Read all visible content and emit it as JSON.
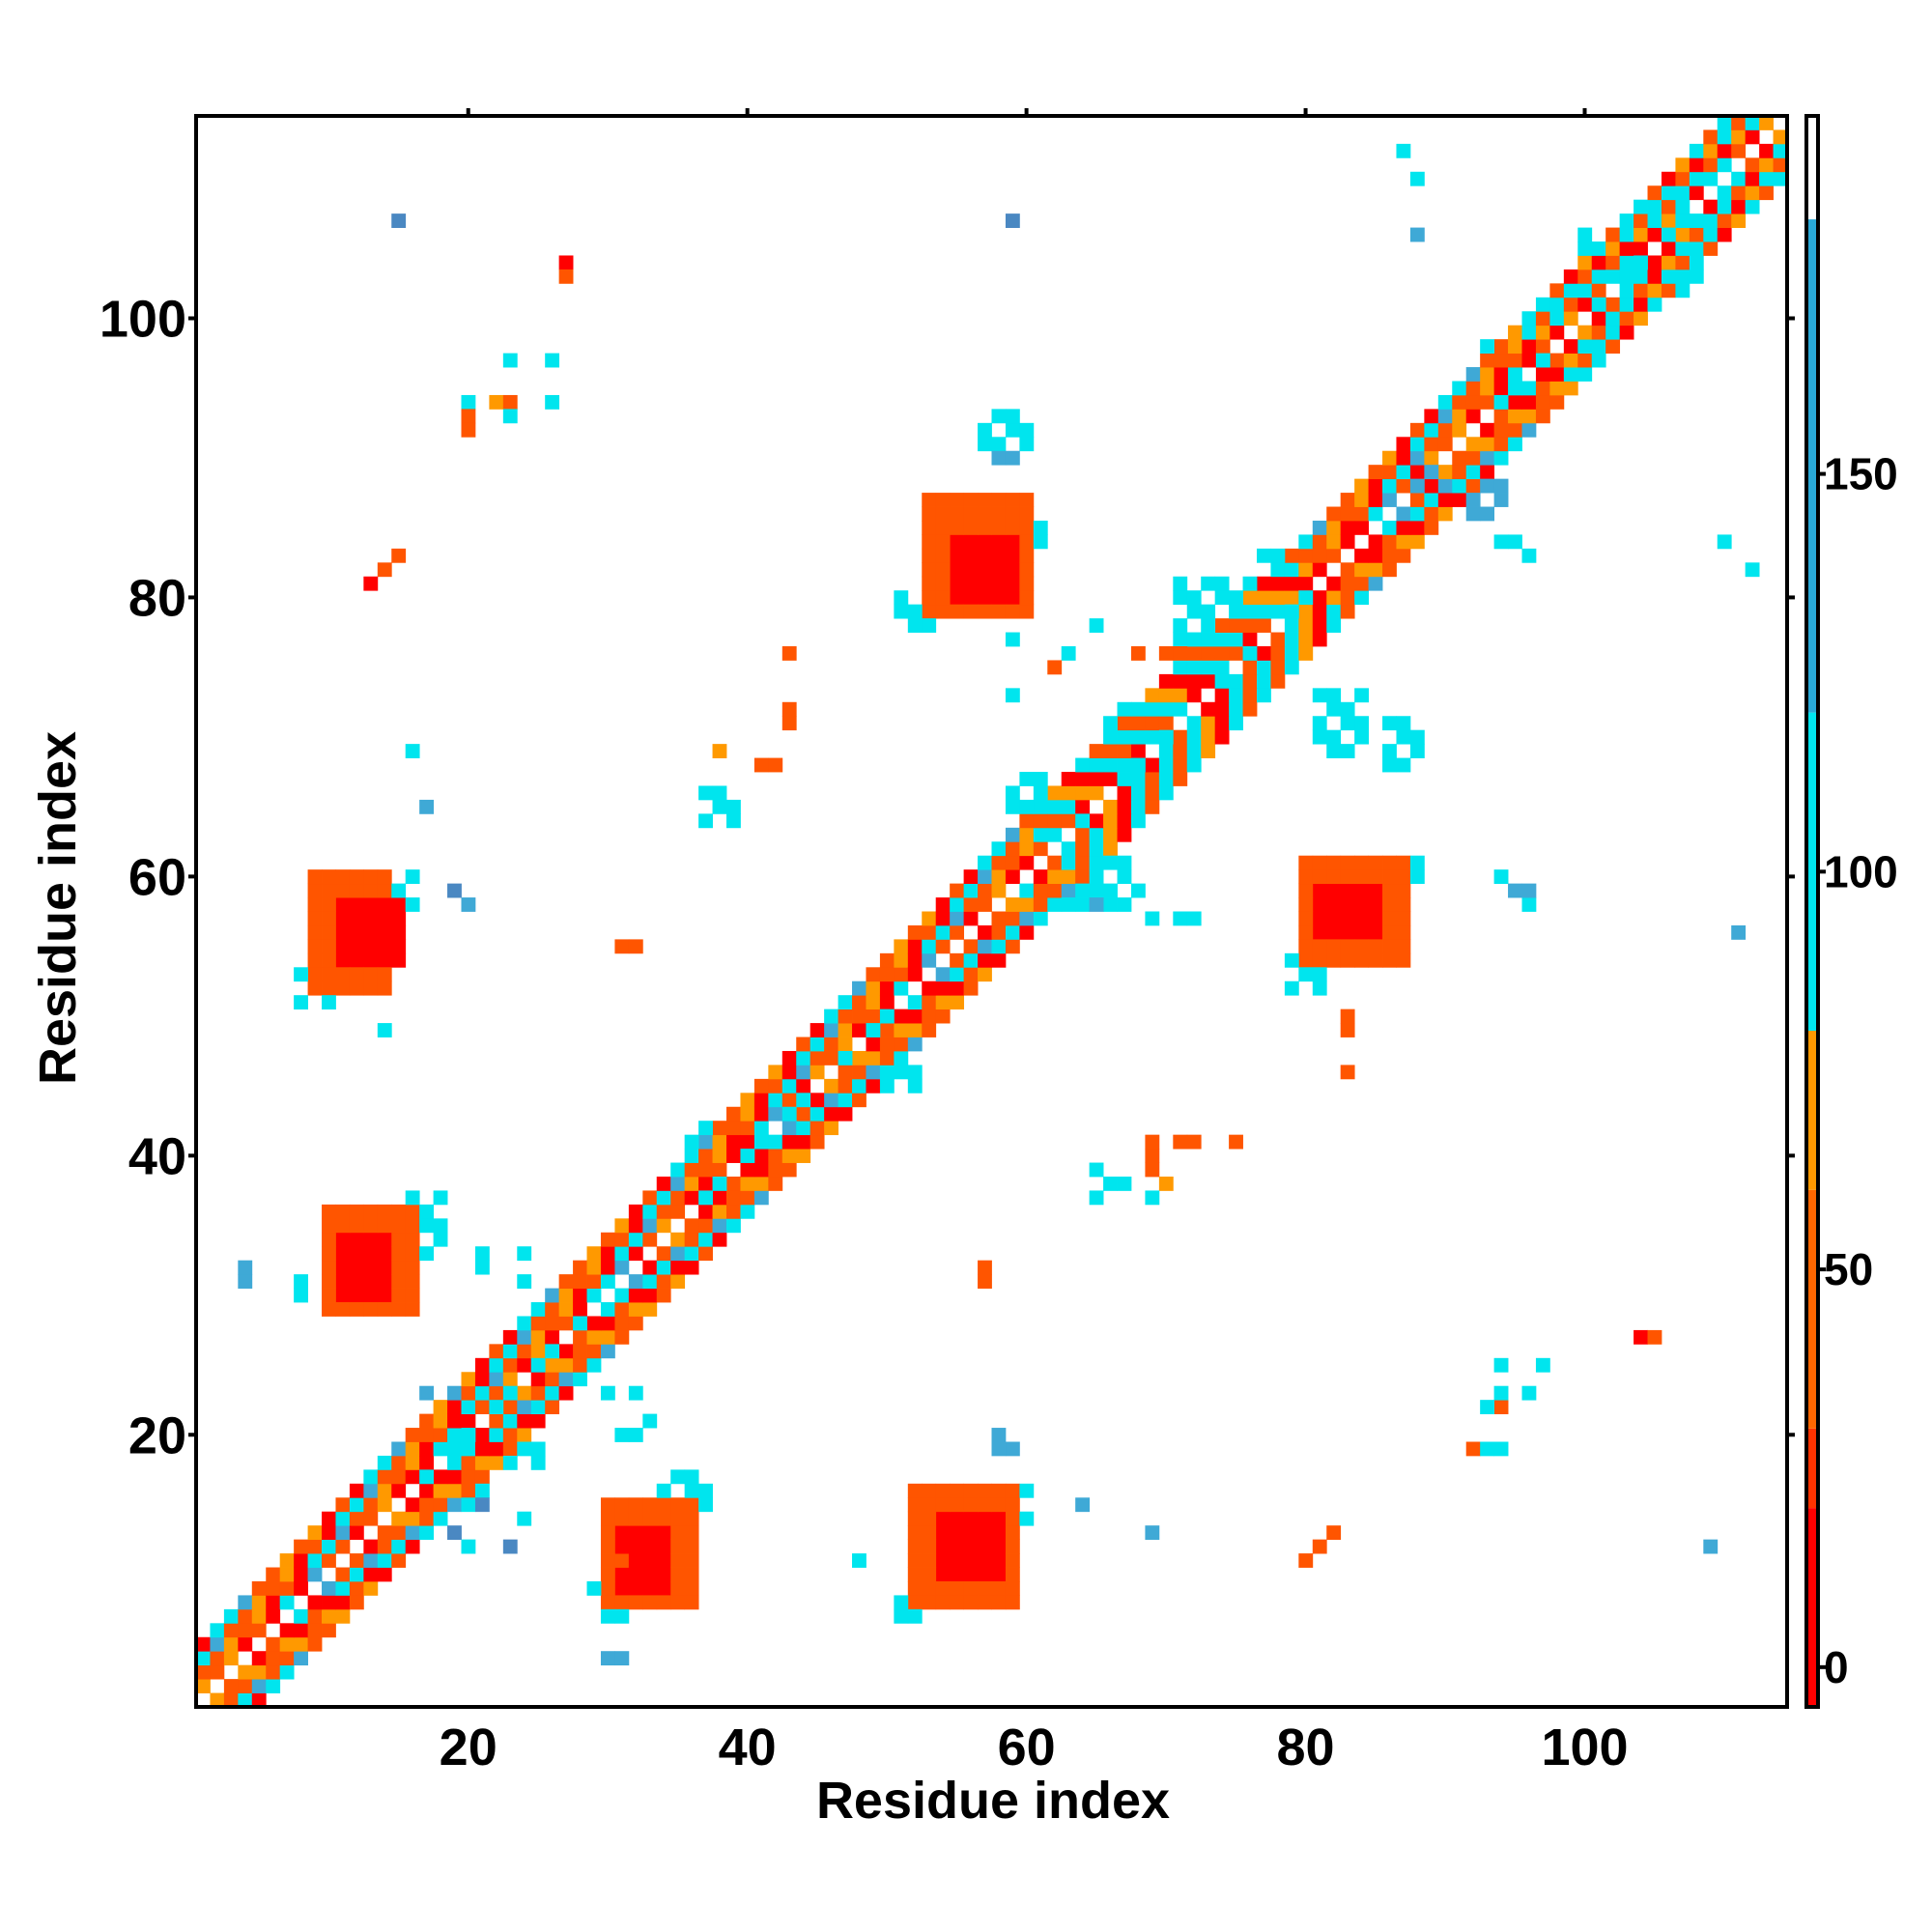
{
  "chart_data": {
    "type": "heatmap",
    "title": "",
    "xlabel": "Residue index",
    "ylabel": "Residue index",
    "xlim": [
      0.5,
      114.5
    ],
    "ylim": [
      0.5,
      114.5
    ],
    "x_ticks": [
      20,
      40,
      60,
      80,
      100
    ],
    "x_tick_labels": [
      "20",
      "40",
      "60",
      "80",
      "100"
    ],
    "y_ticks": [
      20,
      40,
      60,
      80,
      100
    ],
    "y_tick_labels": [
      "20",
      "40",
      "60",
      "80",
      "100"
    ],
    "colorbar": {
      "range": [
        -5,
        195
      ],
      "ticks": [
        0,
        50,
        100,
        150
      ],
      "tick_labels": [
        "0",
        "50",
        "100",
        "150"
      ],
      "bands": [
        {
          "from": -5,
          "to": 20,
          "color": "#ff0000"
        },
        {
          "from": 20,
          "to": 30,
          "color": "#ff3300"
        },
        {
          "from": 30,
          "to": 60,
          "color": "#ff6600"
        },
        {
          "from": 60,
          "to": 80,
          "color": "#ff9900"
        },
        {
          "from": 80,
          "to": 120,
          "color": "#00e5ee"
        },
        {
          "from": 120,
          "to": 182,
          "color": "#29a8d6"
        },
        {
          "from": 182,
          "to": 195,
          "color": "#ffffff"
        }
      ]
    },
    "palette": {
      "r": "#ff0000",
      "o": "#ff5500",
      "y": "#ff9900",
      "c": "#00e5ee",
      "b": "#3fa9d6",
      "d": "#4a88c2"
    },
    "band_values": {
      "r": 8,
      "o": 45,
      "y": 70,
      "c": 100,
      "b": 150,
      "d": 175
    },
    "diagonal": {
      "start": 1,
      "end": 114
    },
    "blocks": [
      {
        "x": [
          11,
          15
        ],
        "y": [
          54,
          58
        ],
        "c": "r"
      },
      {
        "x": [
          9,
          14
        ],
        "y": [
          52,
          60
        ],
        "c": "o"
      },
      {
        "x": [
          8,
          10
        ],
        "y": [
          51,
          53
        ],
        "c": "c"
      },
      {
        "x": [
          15,
          16
        ],
        "y": [
          58,
          60
        ],
        "c": "c"
      },
      {
        "x": [
          54,
          58
        ],
        "y": [
          10,
          14
        ],
        "c": "r"
      },
      {
        "x": [
          52,
          59
        ],
        "y": [
          8,
          16
        ],
        "c": "o"
      },
      {
        "x": [
          51,
          53
        ],
        "y": [
          7,
          9
        ],
        "c": "c"
      },
      {
        "x": [
          59,
          60
        ],
        "y": [
          14,
          16
        ],
        "c": "c"
      },
      {
        "x": [
          55,
          59
        ],
        "y": [
          80,
          84
        ],
        "c": "r"
      },
      {
        "x": [
          53,
          60
        ],
        "y": [
          79,
          87
        ],
        "c": "o"
      },
      {
        "x": [
          51,
          53
        ],
        "y": [
          78,
          80
        ],
        "c": "c"
      },
      {
        "x": [
          60,
          61
        ],
        "y": [
          84,
          86
        ],
        "c": "c"
      },
      {
        "x": [
          81,
          85
        ],
        "y": [
          56,
          59
        ],
        "c": "r"
      },
      {
        "x": [
          80,
          87
        ],
        "y": [
          54,
          61
        ],
        "c": "o"
      },
      {
        "x": [
          79,
          81
        ],
        "y": [
          52,
          54
        ],
        "c": "c"
      },
      {
        "x": [
          86,
          88
        ],
        "y": [
          60,
          61
        ],
        "c": "c"
      },
      {
        "x": [
          11,
          14
        ],
        "y": [
          30,
          34
        ],
        "c": "r"
      },
      {
        "x": [
          10,
          16
        ],
        "y": [
          29,
          36
        ],
        "c": "o"
      },
      {
        "x": [
          16,
          18
        ],
        "y": [
          33,
          37
        ],
        "c": "c"
      },
      {
        "x": [
          31,
          34
        ],
        "y": [
          9,
          13
        ],
        "c": "r"
      },
      {
        "x": [
          30,
          36
        ],
        "y": [
          8,
          15
        ],
        "c": "o"
      },
      {
        "x": [
          34,
          37
        ],
        "y": [
          14,
          17
        ],
        "c": "c"
      },
      {
        "x": [
          63,
          67
        ],
        "y": [
          58,
          62
        ],
        "c": "c"
      },
      {
        "x": [
          59,
          64
        ],
        "y": [
          63,
          67
        ],
        "c": "c"
      },
      {
        "x": [
          66,
          70
        ],
        "y": [
          66,
          72
        ],
        "c": "c"
      },
      {
        "x": [
          86,
          90
        ],
        "y": [
          87,
          91
        ],
        "c": "b"
      },
      {
        "x": [
          89,
          94
        ],
        "y": [
          86,
          88
        ],
        "c": "b"
      },
      {
        "x": [
          71,
          76
        ],
        "y": [
          74,
          81
        ],
        "c": "c"
      },
      {
        "x": [
          77,
          81
        ],
        "y": [
          79,
          83
        ],
        "c": "c"
      },
      {
        "x": [
          81,
          84
        ],
        "y": [
          69,
          73
        ],
        "c": "c"
      },
      {
        "x": [
          19,
          25
        ],
        "y": [
          18,
          23
        ],
        "c": "c"
      },
      {
        "x": [
          17,
          21
        ],
        "y": [
          15,
          19
        ],
        "c": "c"
      },
      {
        "x": [
          24,
          28
        ],
        "y": [
          24,
          28
        ],
        "c": "c"
      },
      {
        "x": [
          36,
          40
        ],
        "y": [
          37,
          42
        ],
        "c": "c"
      },
      {
        "x": [
          47,
          52
        ],
        "y": [
          45,
          51
        ],
        "c": "c"
      },
      {
        "x": [
          41,
          46
        ],
        "y": [
          41,
          45
        ],
        "c": "c"
      },
      {
        "x": [
          100,
          104
        ],
        "y": [
          101,
          106
        ],
        "c": "c"
      },
      {
        "x": [
          104,
          108
        ],
        "y": [
          102,
          107
        ],
        "c": "c"
      },
      {
        "x": [
          93,
          97
        ],
        "y": [
          94,
          98
        ],
        "c": "c"
      },
      {
        "x": [
          57,
          60
        ],
        "y": [
          91,
          93
        ],
        "c": "c"
      },
      {
        "x": [
          58,
          60
        ],
        "y": [
          90,
          92
        ],
        "c": "b"
      },
      {
        "x": [
          37,
          39
        ],
        "y": [
          64,
          66
        ],
        "c": "c"
      },
      {
        "x": [
          86,
          88
        ],
        "y": [
          68,
          71
        ],
        "c": "c"
      }
    ],
    "cells": [
      [
        15,
        107,
        "d"
      ],
      [
        59,
        107,
        "d"
      ],
      [
        27,
        104,
        "r"
      ],
      [
        27,
        103,
        "o"
      ],
      [
        87,
        112,
        "c"
      ],
      [
        88,
        110,
        "c"
      ],
      [
        88,
        106,
        "b"
      ],
      [
        23,
        97,
        "c"
      ],
      [
        26,
        97,
        "c"
      ],
      [
        22,
        94,
        "y"
      ],
      [
        23,
        94,
        "o"
      ],
      [
        20,
        94,
        "c"
      ],
      [
        26,
        94,
        "c"
      ],
      [
        20,
        93,
        "o"
      ],
      [
        23,
        93,
        "c"
      ],
      [
        20,
        92,
        "o"
      ],
      [
        15,
        83,
        "o"
      ],
      [
        14,
        82,
        "o"
      ],
      [
        13,
        81,
        "r"
      ],
      [
        94,
        84,
        "c"
      ],
      [
        96,
        83,
        "c"
      ],
      [
        95,
        84,
        "c"
      ],
      [
        112,
        82,
        "c"
      ],
      [
        110,
        84,
        "c"
      ],
      [
        68,
        76,
        "o"
      ],
      [
        70,
        76,
        "o"
      ],
      [
        71,
        76,
        "o"
      ],
      [
        59,
        77,
        "c"
      ],
      [
        63,
        76,
        "c"
      ],
      [
        65,
        78,
        "c"
      ],
      [
        62,
        75,
        "o"
      ],
      [
        59,
        73,
        "c"
      ],
      [
        43,
        76,
        "o"
      ],
      [
        43,
        71,
        "o"
      ],
      [
        43,
        72,
        "o"
      ],
      [
        41,
        68,
        "o"
      ],
      [
        42,
        68,
        "o"
      ],
      [
        38,
        69,
        "y"
      ],
      [
        16,
        69,
        "c"
      ],
      [
        17,
        65,
        "b"
      ],
      [
        19,
        59,
        "d"
      ],
      [
        20,
        58,
        "b"
      ],
      [
        60,
        59,
        "c"
      ],
      [
        64,
        59,
        "c"
      ],
      [
        65,
        58,
        "b"
      ],
      [
        68,
        59,
        "c"
      ],
      [
        69,
        57,
        "c"
      ],
      [
        71,
        57,
        "c"
      ],
      [
        72,
        57,
        "c"
      ],
      [
        94,
        60,
        "c"
      ],
      [
        95,
        59,
        "b"
      ],
      [
        96,
        58,
        "c"
      ],
      [
        96,
        59,
        "b"
      ],
      [
        111,
        56,
        "b"
      ],
      [
        31,
        55,
        "o"
      ],
      [
        32,
        55,
        "o"
      ],
      [
        14,
        49,
        "c"
      ],
      [
        83,
        50,
        "o"
      ],
      [
        83,
        49,
        "o"
      ],
      [
        83,
        46,
        "o"
      ],
      [
        69,
        41,
        "o"
      ],
      [
        71,
        41,
        "o"
      ],
      [
        72,
        41,
        "o"
      ],
      [
        75,
        41,
        "o"
      ],
      [
        69,
        40,
        "o"
      ],
      [
        69,
        39,
        "o"
      ],
      [
        70,
        38,
        "y"
      ],
      [
        65,
        39,
        "c"
      ],
      [
        66,
        38,
        "c"
      ],
      [
        65,
        37,
        "c"
      ],
      [
        67,
        38,
        "c"
      ],
      [
        69,
        37,
        "c"
      ],
      [
        4,
        32,
        "b"
      ],
      [
        4,
        31,
        "b"
      ],
      [
        8,
        31,
        "c"
      ],
      [
        8,
        30,
        "c"
      ],
      [
        21,
        33,
        "c"
      ],
      [
        24,
        33,
        "c"
      ],
      [
        21,
        32,
        "c"
      ],
      [
        24,
        31,
        "c"
      ],
      [
        57,
        32,
        "o"
      ],
      [
        57,
        31,
        "o"
      ],
      [
        104,
        27,
        "r"
      ],
      [
        105,
        27,
        "o"
      ],
      [
        97,
        25,
        "c"
      ],
      [
        94,
        25,
        "c"
      ],
      [
        94,
        22,
        "o"
      ],
      [
        94,
        23,
        "c"
      ],
      [
        96,
        23,
        "c"
      ],
      [
        93,
        22,
        "c"
      ],
      [
        92,
        19,
        "o"
      ],
      [
        93,
        19,
        "c"
      ],
      [
        94,
        19,
        "c"
      ],
      [
        17,
        23,
        "b"
      ],
      [
        19,
        23,
        "b"
      ],
      [
        30,
        23,
        "c"
      ],
      [
        32,
        23,
        "c"
      ],
      [
        33,
        21,
        "c"
      ],
      [
        31,
        20,
        "c"
      ],
      [
        32,
        20,
        "c"
      ],
      [
        58,
        20,
        "b"
      ],
      [
        59,
        19,
        "b"
      ],
      [
        58,
        19,
        "b"
      ],
      [
        21,
        15,
        "d"
      ],
      [
        24,
        14,
        "c"
      ],
      [
        19,
        13,
        "d"
      ],
      [
        23,
        12,
        "d"
      ],
      [
        20,
        12,
        "c"
      ],
      [
        64,
        15,
        "b"
      ],
      [
        69,
        13,
        "b"
      ],
      [
        81,
        12,
        "o"
      ],
      [
        82,
        13,
        "o"
      ],
      [
        80,
        11,
        "o"
      ],
      [
        48,
        11,
        "c"
      ],
      [
        31,
        11,
        "o"
      ],
      [
        29,
        9,
        "c"
      ],
      [
        31,
        7,
        "c"
      ],
      [
        30,
        7,
        "c"
      ],
      [
        30,
        4,
        "b"
      ],
      [
        31,
        4,
        "b"
      ],
      [
        109,
        12,
        "b"
      ]
    ]
  }
}
